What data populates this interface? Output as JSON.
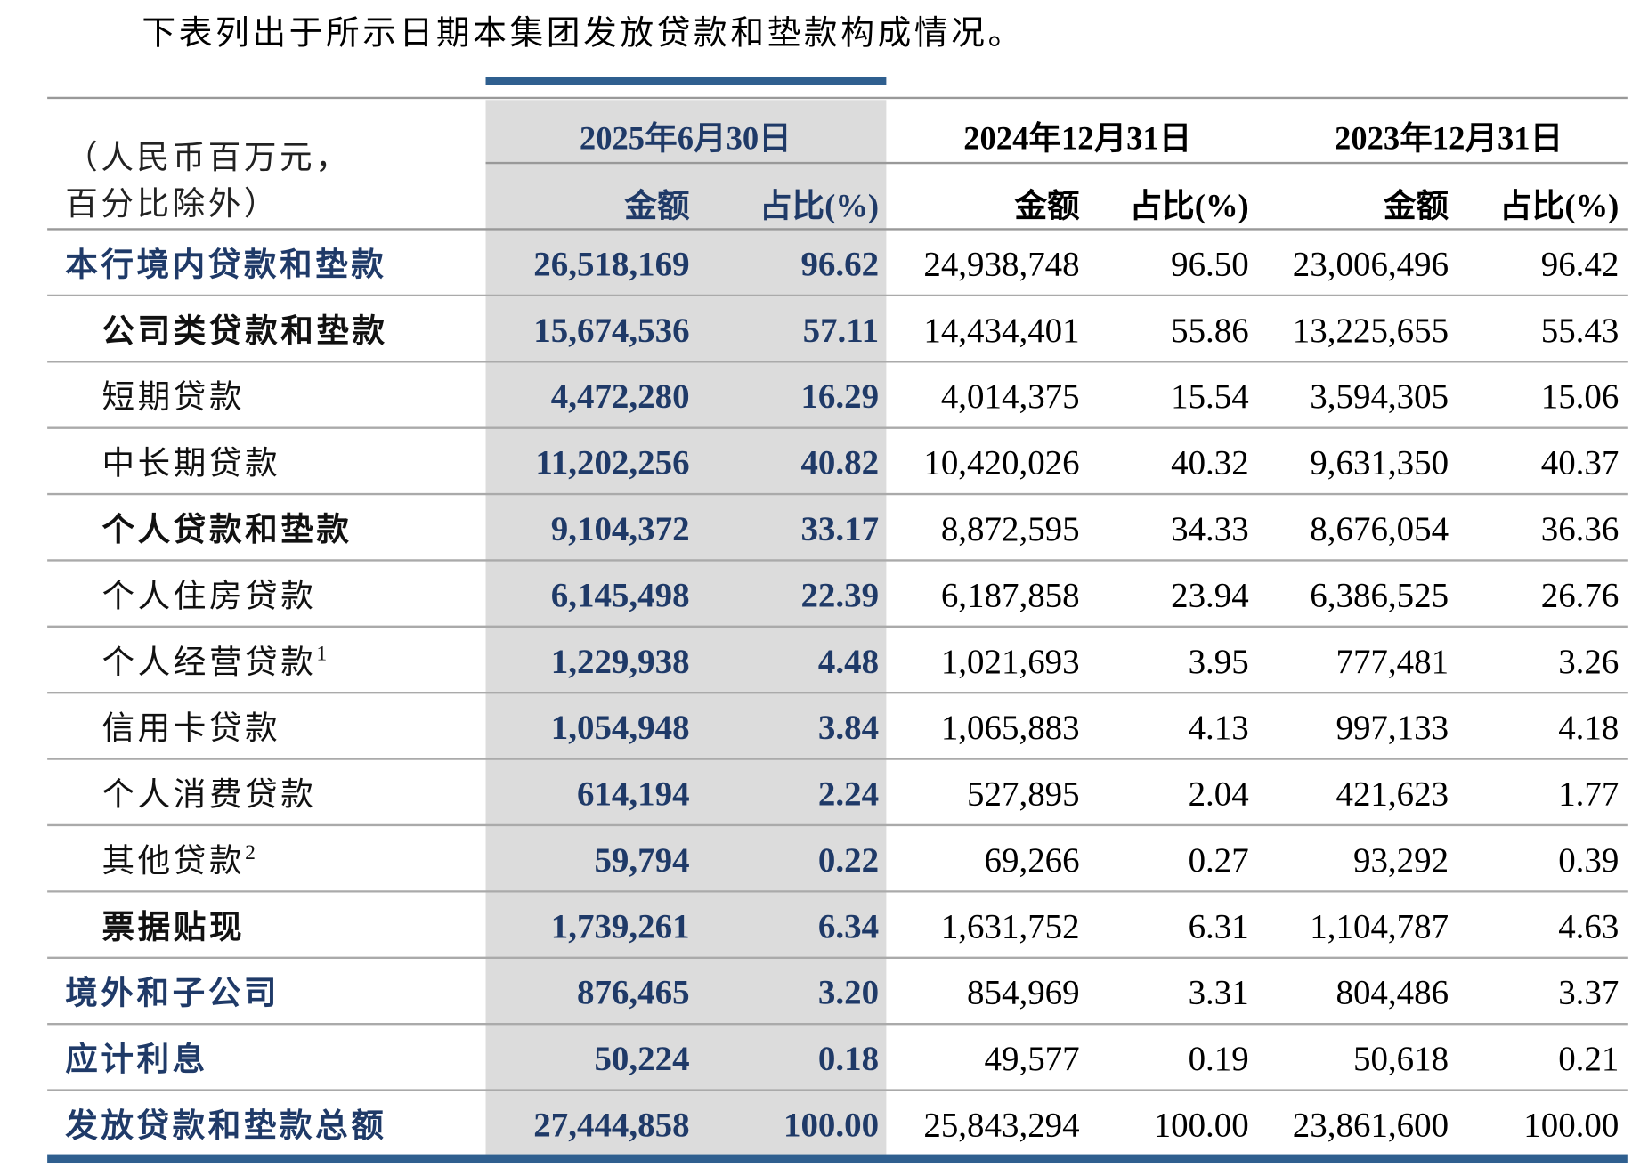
{
  "intro": "下表列出于所示日期本集团发放贷款和垫款构成情况。",
  "header": {
    "unit_lines": [
      "（人民币百万元，",
      "百分比除外）"
    ],
    "periods": [
      "2025年6月30日",
      "2024年12月31日",
      "2023年12月31日"
    ],
    "amount": "金额",
    "ratio": "占比(%)"
  },
  "rows": [
    {
      "label": "本行境内贷款和垫款",
      "level": 0,
      "cells": [
        "26,518,169",
        "96.62",
        "24,938,748",
        "96.50",
        "23,006,496",
        "96.42"
      ]
    },
    {
      "label": "公司类贷款和垫款",
      "level": 1,
      "cells": [
        "15,674,536",
        "57.11",
        "14,434,401",
        "55.86",
        "13,225,655",
        "55.43"
      ]
    },
    {
      "label": "短期贷款",
      "level": 2,
      "cells": [
        "4,472,280",
        "16.29",
        "4,014,375",
        "15.54",
        "3,594,305",
        "15.06"
      ]
    },
    {
      "label": "中长期贷款",
      "level": 2,
      "cells": [
        "11,202,256",
        "40.82",
        "10,420,026",
        "40.32",
        "9,631,350",
        "40.37"
      ]
    },
    {
      "label": "个人贷款和垫款",
      "level": 1,
      "cells": [
        "9,104,372",
        "33.17",
        "8,872,595",
        "34.33",
        "8,676,054",
        "36.36"
      ]
    },
    {
      "label": "个人住房贷款",
      "level": 2,
      "cells": [
        "6,145,498",
        "22.39",
        "6,187,858",
        "23.94",
        "6,386,525",
        "26.76"
      ]
    },
    {
      "label": "个人经营贷款",
      "note": "1",
      "level": 2,
      "cells": [
        "1,229,938",
        "4.48",
        "1,021,693",
        "3.95",
        "777,481",
        "3.26"
      ]
    },
    {
      "label": "信用卡贷款",
      "level": 2,
      "cells": [
        "1,054,948",
        "3.84",
        "1,065,883",
        "4.13",
        "997,133",
        "4.18"
      ]
    },
    {
      "label": "个人消费贷款",
      "level": 2,
      "cells": [
        "614,194",
        "2.24",
        "527,895",
        "2.04",
        "421,623",
        "1.77"
      ]
    },
    {
      "label": "其他贷款",
      "note": "2",
      "level": 2,
      "cells": [
        "59,794",
        "0.22",
        "69,266",
        "0.27",
        "93,292",
        "0.39"
      ]
    },
    {
      "label": "票据贴现",
      "level": 1,
      "cells": [
        "1,739,261",
        "6.34",
        "1,631,752",
        "6.31",
        "1,104,787",
        "4.63"
      ]
    },
    {
      "label": "境外和子公司",
      "level": 0,
      "cells": [
        "876,465",
        "3.20",
        "854,969",
        "3.31",
        "804,486",
        "3.37"
      ]
    },
    {
      "label": "应计利息",
      "level": 0,
      "cells": [
        "50,224",
        "0.18",
        "49,577",
        "0.19",
        "50,618",
        "0.21"
      ]
    },
    {
      "label": "发放贷款和垫款总额",
      "level": 0,
      "cells": [
        "27,444,858",
        "100.00",
        "25,843,294",
        "100.00",
        "23,861,600",
        "100.00"
      ]
    }
  ]
}
